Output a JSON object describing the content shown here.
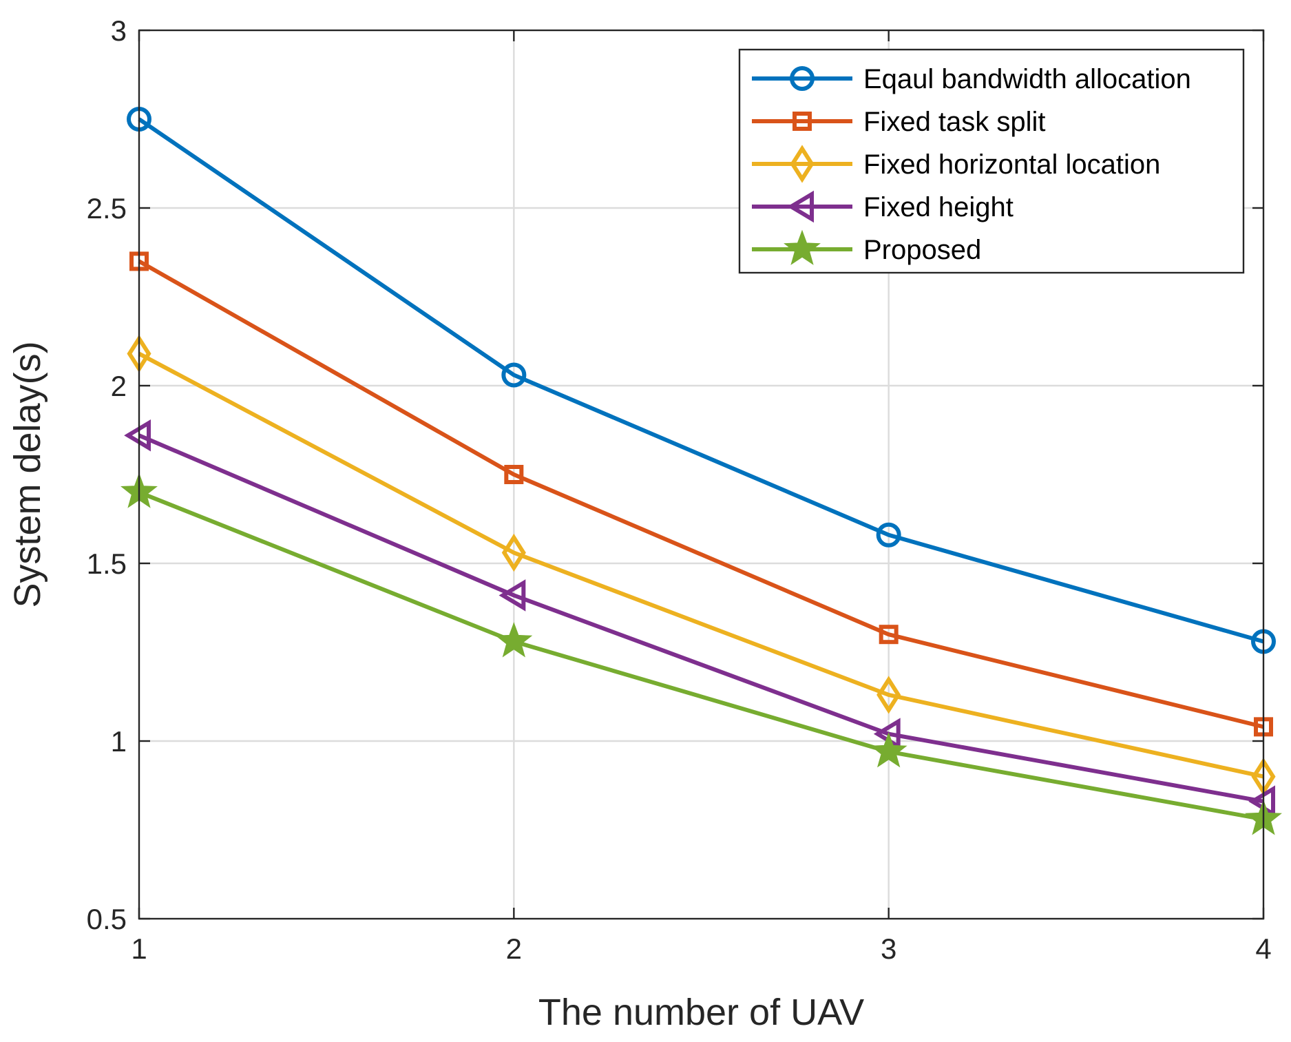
{
  "chart_data": {
    "type": "line",
    "title": "",
    "xlabel": "The number of UAV",
    "ylabel": "System delay(s)",
    "x": [
      1,
      2,
      3,
      4
    ],
    "xlim": [
      1,
      4
    ],
    "ylim": [
      0.5,
      3
    ],
    "xticks": [
      1,
      2,
      3,
      4
    ],
    "xtick_labels": [
      "1",
      "2",
      "3",
      "4"
    ],
    "yticks": [
      0.5,
      1,
      1.5,
      2,
      2.5,
      3
    ],
    "ytick_labels": [
      "0.5",
      "1",
      "1.5",
      "2",
      "2.5",
      "3"
    ],
    "grid": true,
    "legend_position": "top-right",
    "series": [
      {
        "name": "Eqaul bandwidth allocation",
        "values": [
          2.75,
          2.03,
          1.58,
          1.28
        ],
        "color": "#0072BD",
        "marker": "circle"
      },
      {
        "name": "Fixed task split",
        "values": [
          2.35,
          1.75,
          1.3,
          1.04
        ],
        "color": "#D95319",
        "marker": "square"
      },
      {
        "name": "Fixed horizontal location",
        "values": [
          2.09,
          1.53,
          1.13,
          0.9
        ],
        "color": "#EDB120",
        "marker": "diamond"
      },
      {
        "name": "Fixed height",
        "values": [
          1.86,
          1.41,
          1.02,
          0.83
        ],
        "color": "#7E2F8E",
        "marker": "triangle-left"
      },
      {
        "name": "Proposed",
        "values": [
          1.7,
          1.28,
          0.97,
          0.78
        ],
        "color": "#77AC30",
        "marker": "star"
      }
    ]
  }
}
